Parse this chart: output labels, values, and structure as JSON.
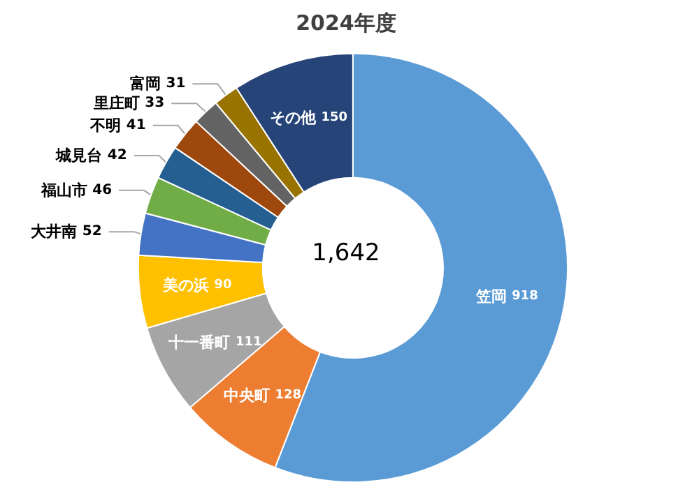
{
  "chart_data": {
    "type": "donut",
    "title": "2024年度",
    "categories": [
      "笠岡",
      "中央町",
      "十一番町",
      "美の浜",
      "大井南",
      "福山市",
      "城見台",
      "不明",
      "里庄町",
      "富岡",
      "その他"
    ],
    "values": [
      918,
      128,
      111,
      90,
      52,
      46,
      42,
      41,
      33,
      31,
      150
    ],
    "colors": [
      "#5b9bd5",
      "#ed7d31",
      "#a5a5a5",
      "#ffc000",
      "#4472c4",
      "#70ad47",
      "#255e91",
      "#9e480e",
      "#636363",
      "#997300",
      "#264478"
    ],
    "annotations": [
      "1,642"
    ],
    "data_labels": true,
    "legend": false
  }
}
